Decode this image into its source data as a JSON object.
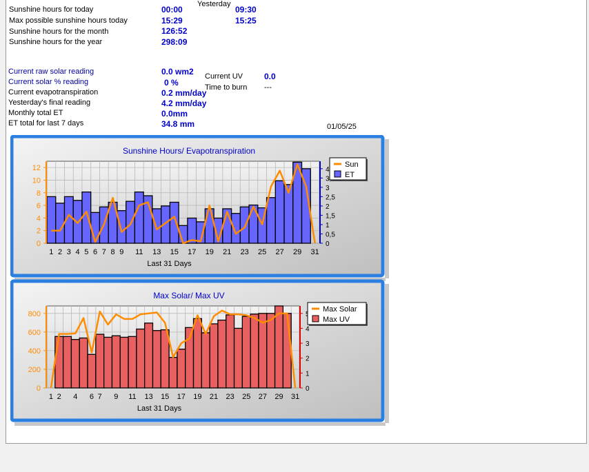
{
  "stats": {
    "sun_today_label": "Sunshine hours for today",
    "sun_today_value": "00:00",
    "yesterday_label": "Yesterday",
    "sun_yesterday_value": "09:30",
    "max_sun_label": "Max possible sunshine hours today",
    "max_sun_value": "15:29",
    "max_sun_yesterday_value": "15:25",
    "sun_month_label": "Sunshine hours for the month",
    "sun_month_value": "126:52",
    "sun_year_label": "Sunshine hours for the year",
    "sun_year_value": "298:09",
    "raw_solar_label": "Current raw solar reading",
    "raw_solar_value": "0.0 wm2",
    "solar_pct_label": "Current solar % reading",
    "solar_pct_value": "0 %",
    "evapo_label": "Current evapotranspiration",
    "evapo_value": "0.2 mm/day",
    "yesterday_final_label": "Yesterday's final reading",
    "yesterday_final_value": "4.2 mm/day",
    "monthly_et_label": "Monthly total ET",
    "monthly_et_value": "0.0mm",
    "et7_label": "ET total for last 7 days",
    "et7_value": "34.8 mm",
    "uv_label": "Current UV",
    "uv_value": "0.0",
    "burn_label": "Time to burn",
    "burn_value": "---",
    "date": "01/05/25"
  },
  "colors": {
    "frame_blue": "#2a7fe0",
    "sun_line": "#ff8c00",
    "et_bar": "#6666ff",
    "solar_line": "#ff8c00",
    "uv_bar": "#e86060",
    "title_blue": "#0000cc",
    "left_axis": "#ff8c00",
    "right_axis1": "#0000cc",
    "right_axis2": "#e00000"
  },
  "chart_data": [
    {
      "type": "bar",
      "title": "Sunshine Hours/ Evapotranspiration",
      "xlabel": "Last 31 Days",
      "x": [
        1,
        2,
        3,
        4,
        5,
        6,
        7,
        8,
        9,
        10,
        11,
        12,
        13,
        14,
        15,
        16,
        17,
        18,
        19,
        20,
        21,
        22,
        23,
        24,
        25,
        26,
        27,
        28,
        29,
        30,
        31
      ],
      "x_ticks": [
        1,
        2,
        3,
        4,
        5,
        6,
        7,
        8,
        9,
        11,
        13,
        15,
        17,
        19,
        21,
        23,
        25,
        27,
        29,
        31
      ],
      "legend_position": "top-right",
      "y_left": {
        "min": 0,
        "max": 13,
        "ticks": [
          0,
          2,
          4,
          6,
          8,
          10,
          12
        ]
      },
      "y_right": {
        "min": 0,
        "max": 4.4,
        "ticks": [
          0,
          0.5,
          1,
          1.5,
          2,
          2.5,
          3,
          3.5,
          4
        ],
        "tick_labels": [
          "0",
          "0,5",
          "1",
          "1,5",
          "2",
          "2,5",
          "3",
          "3,5",
          "4"
        ]
      },
      "series": [
        {
          "name": "Sun",
          "kind": "line",
          "axis": "left",
          "values": [
            2.0,
            2.0,
            4.5,
            3.2,
            5.0,
            0.2,
            3.0,
            7.2,
            1.8,
            3.0,
            6.0,
            6.5,
            2.2,
            3.2,
            4.2,
            0.0,
            0.5,
            0.3,
            6.0,
            0.3,
            5.0,
            1.5,
            2.5,
            5.8,
            3.0,
            9.0,
            11.5,
            8.0,
            12.5,
            9.0,
            0.0
          ]
        },
        {
          "name": "ET",
          "kind": "bar",
          "axis": "right",
          "values": [
            2.5,
            2.15,
            2.5,
            2.3,
            2.75,
            1.65,
            1.95,
            2.2,
            1.75,
            2.25,
            2.75,
            2.55,
            1.85,
            2.0,
            2.2,
            0.95,
            1.35,
            1.15,
            1.85,
            1.35,
            1.85,
            1.6,
            1.95,
            2.05,
            1.9,
            2.45,
            3.35,
            3.15,
            4.35,
            4.0,
            0.0
          ]
        }
      ]
    },
    {
      "type": "bar",
      "title": "Max Solar/ Max UV",
      "xlabel": "Last 31 Days",
      "x": [
        1,
        2,
        3,
        4,
        5,
        6,
        7,
        8,
        9,
        10,
        11,
        12,
        13,
        14,
        15,
        16,
        17,
        18,
        19,
        20,
        21,
        22,
        23,
        24,
        25,
        26,
        27,
        28,
        29,
        30,
        31
      ],
      "x_ticks": [
        1,
        2,
        4,
        6,
        7,
        9,
        11,
        13,
        15,
        17,
        19,
        21,
        23,
        25,
        27,
        29,
        31
      ],
      "legend_position": "top-right",
      "y_left": {
        "min": 0,
        "max": 880,
        "ticks": [
          0,
          200,
          400,
          600,
          800
        ]
      },
      "y_right": {
        "min": 0,
        "max": 5.5,
        "ticks": [
          0,
          1,
          2,
          3,
          4,
          5
        ]
      },
      "series": [
        {
          "name": "Max Solar",
          "kind": "line",
          "axis": "left",
          "values": [
            0,
            580,
            580,
            585,
            750,
            380,
            820,
            680,
            790,
            740,
            740,
            790,
            800,
            810,
            700,
            330,
            480,
            530,
            780,
            580,
            770,
            830,
            790,
            790,
            780,
            750,
            700,
            730,
            800,
            800,
            0
          ]
        },
        {
          "name": "Max UV",
          "kind": "bar",
          "axis": "right",
          "values": [
            0,
            3.45,
            3.45,
            3.25,
            3.35,
            2.25,
            3.6,
            3.4,
            3.5,
            3.4,
            3.45,
            3.95,
            4.35,
            3.85,
            3.9,
            2.05,
            2.6,
            4.05,
            4.65,
            3.7,
            4.3,
            4.55,
            4.9,
            4.0,
            4.8,
            4.95,
            5.0,
            5.0,
            5.5,
            5.0,
            0
          ]
        }
      ]
    }
  ]
}
